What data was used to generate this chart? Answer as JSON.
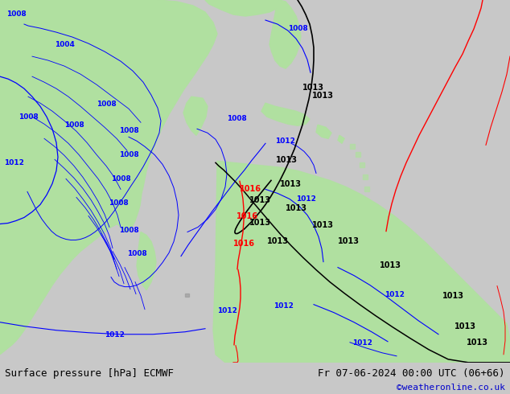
{
  "title_left": "Surface pressure [hPa] ECMWF",
  "title_right": "Fr 07-06-2024 00:00 UTC (06+66)",
  "credit": "©weatheronline.co.uk",
  "bg_color": "#c8c8c8",
  "land_color": "#b0e0a0",
  "ocean_color": "#c8c8c8",
  "figsize": [
    6.34,
    4.9
  ],
  "dpi": 100,
  "bottom_bar_color": "#ffffff",
  "title_fontsize": 9,
  "credit_color": "#0000cc",
  "credit_fontsize": 8,
  "blue": "#0000ff",
  "black": "#000000",
  "red": "#ff0000"
}
